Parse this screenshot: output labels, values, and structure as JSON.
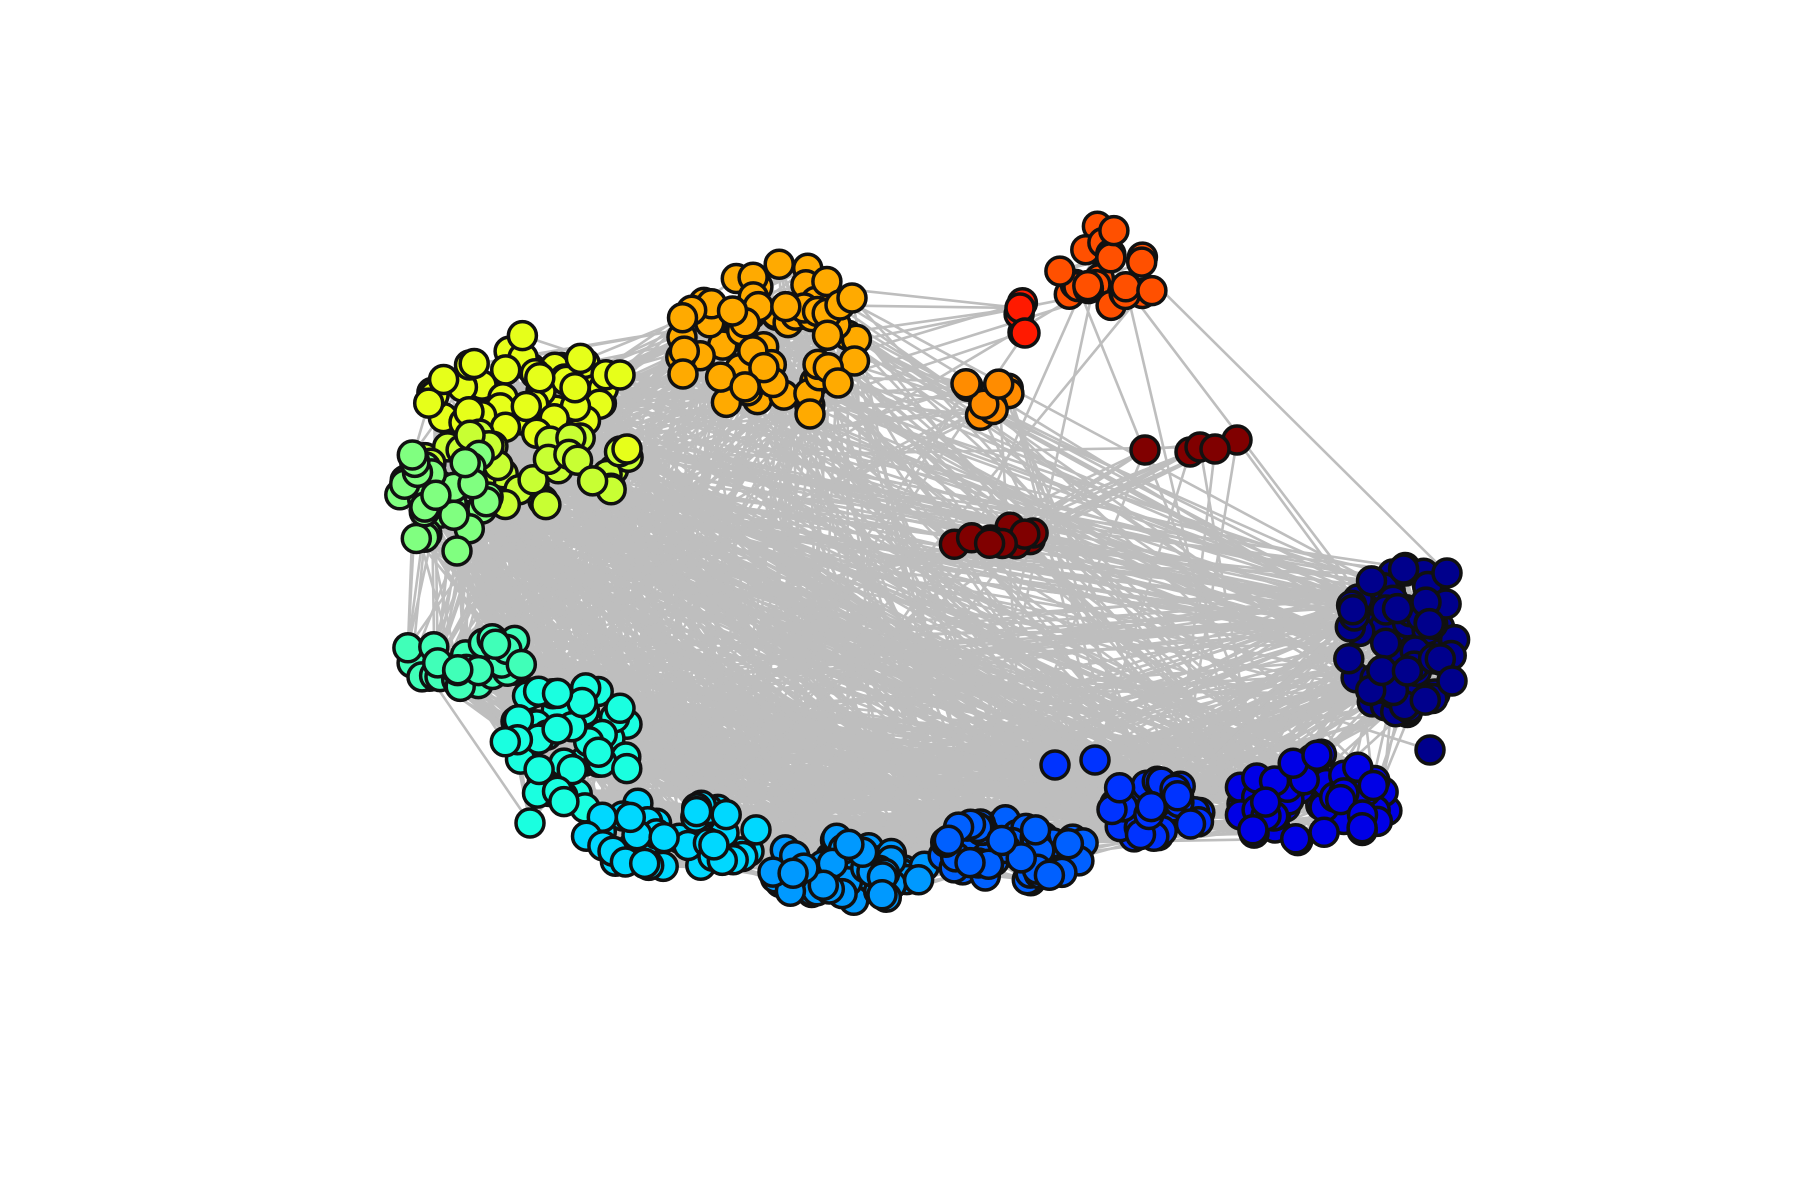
{
  "diagram": {
    "type": "network-graph",
    "edge_color": "#bebebe",
    "node_outline_color": "#111111",
    "background": "#ffffff",
    "clusters": [
      {
        "name": "dark-red",
        "color": "#800000"
      },
      {
        "name": "red",
        "color": "#ff1a00"
      },
      {
        "name": "red-orange",
        "color": "#ff5000"
      },
      {
        "name": "orange",
        "color": "#ff8c00"
      },
      {
        "name": "amber",
        "color": "#ffaa00"
      },
      {
        "name": "yellow",
        "color": "#e6ff1a"
      },
      {
        "name": "yellow-green",
        "color": "#c8ff33"
      },
      {
        "name": "light-green",
        "color": "#80ff80"
      },
      {
        "name": "aquamarine",
        "color": "#40ffb8"
      },
      {
        "name": "turquoise",
        "color": "#1affe0"
      },
      {
        "name": "cyan",
        "color": "#00d8ff"
      },
      {
        "name": "sky-blue",
        "color": "#0099ff"
      },
      {
        "name": "azure",
        "color": "#0060ff"
      },
      {
        "name": "royal-blue",
        "color": "#0033ff"
      },
      {
        "name": "blue",
        "color": "#0000e6"
      },
      {
        "name": "navy",
        "color": "#00008c"
      }
    ]
  }
}
